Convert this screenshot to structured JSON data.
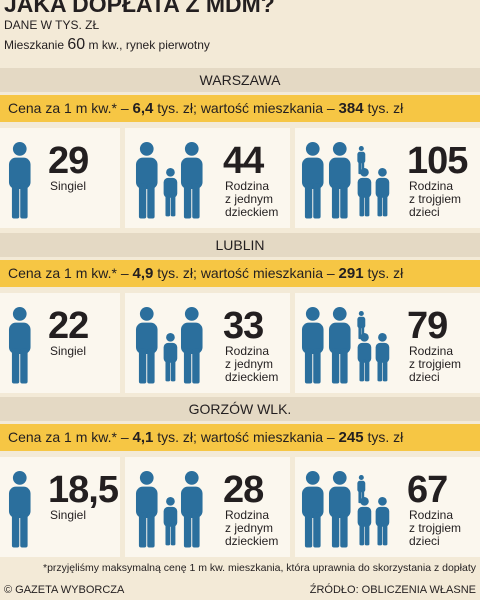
{
  "header": {
    "title": "JAKA DOPŁATA Z MDM?",
    "subtitle": "DANE W TYS. ZŁ",
    "note_prefix": "Mieszkanie",
    "area": "60",
    "note_suffix": "m kw., rynek pierwotny"
  },
  "sections": [
    {
      "city": "WARSZAWA",
      "price_prefix": "Cena za 1 m kw.* –",
      "price": "6,4",
      "price_mid": "tys. zł; wartość mieszkania –",
      "value": "384",
      "value_unit": "tys. zł",
      "items": [
        {
          "amount": "29",
          "label": [
            "Singiel"
          ]
        },
        {
          "amount": "44",
          "label": [
            "Rodzina",
            "z jednym",
            "dzieckiem"
          ]
        },
        {
          "amount": "105",
          "label": [
            "Rodzina",
            "z trojgiem",
            "dzieci"
          ]
        }
      ]
    },
    {
      "city": "LUBLIN",
      "price_prefix": "Cena za 1 m kw.* –",
      "price": "4,9",
      "price_mid": "tys. zł; wartość mieszkania –",
      "value": "291",
      "value_unit": "tys. zł",
      "items": [
        {
          "amount": "22",
          "label": [
            "Singiel"
          ]
        },
        {
          "amount": "33",
          "label": [
            "Rodzina",
            "z jednym",
            "dzieckiem"
          ]
        },
        {
          "amount": "79",
          "label": [
            "Rodzina",
            "z trojgiem",
            "dzieci"
          ]
        }
      ]
    },
    {
      "city": "GORZÓW WLK.",
      "price_prefix": "Cena za 1 m kw.* –",
      "price": "4,1",
      "price_mid": "tys. zł; wartość mieszkania –",
      "value": "245",
      "value_unit": "tys. zł",
      "items": [
        {
          "amount": "18,5",
          "label": [
            "Singiel"
          ]
        },
        {
          "amount": "28",
          "label": [
            "Rodzina",
            "z jednym",
            "dzieckiem"
          ]
        },
        {
          "amount": "67",
          "label": [
            "Rodzina",
            "z trojgiem",
            "dzieci"
          ]
        }
      ]
    }
  ],
  "footer": {
    "footnote": "*przyjęliśmy maksymalną cenę 1 m kw. mieszkania, która uprawnia do skorzystania z dopłaty",
    "credit": "© GAZETA WYBORCZA",
    "source": "ŹRÓDŁO: OBLICZENIA WŁASNE"
  }
}
